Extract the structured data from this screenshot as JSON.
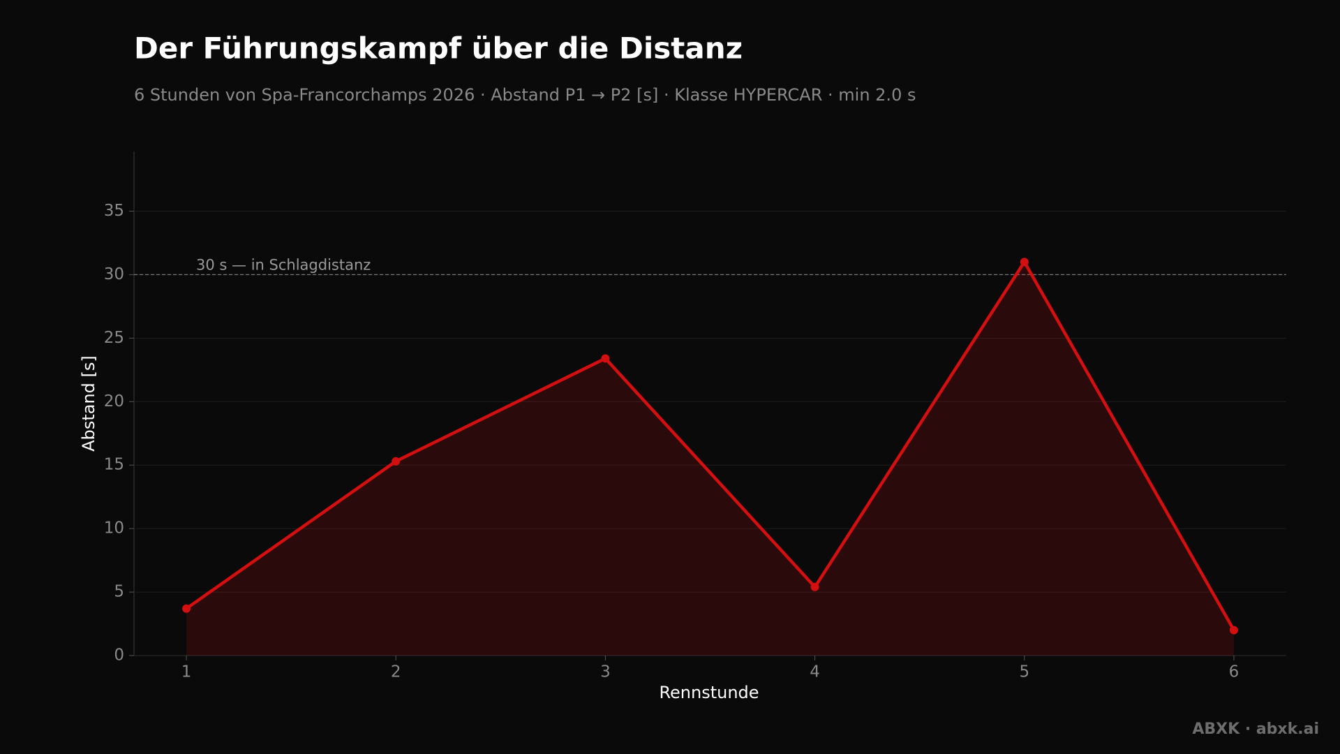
{
  "chart_data": {
    "type": "line",
    "title": "Der Führungskampf über die Distanz",
    "subtitle": "6 Stunden von Spa-Francorchamps 2026 · Abstand P1 → P2 [s] · Klasse HYPERCAR · min 2.0 s",
    "x_label": "Rennstunde",
    "y_label": "Abstand [s]",
    "x": [
      1,
      2,
      3,
      4,
      5,
      6
    ],
    "values": [
      3.7,
      15.3,
      23.4,
      5.4,
      31.0,
      2.0
    ],
    "color": "#d40f0f",
    "area": true,
    "xlim": [
      0.75,
      6.25
    ],
    "xticks": [
      1,
      2,
      3,
      4,
      5,
      6
    ],
    "ylim": [
      0,
      39.7
    ],
    "yticks": [
      0,
      5,
      10,
      15,
      20,
      25,
      30,
      35
    ],
    "grid": true,
    "reference_line": {
      "value": 30,
      "label": "30 s — in Schlagdistanz"
    }
  },
  "footer": "ABXK · abxk.ai"
}
